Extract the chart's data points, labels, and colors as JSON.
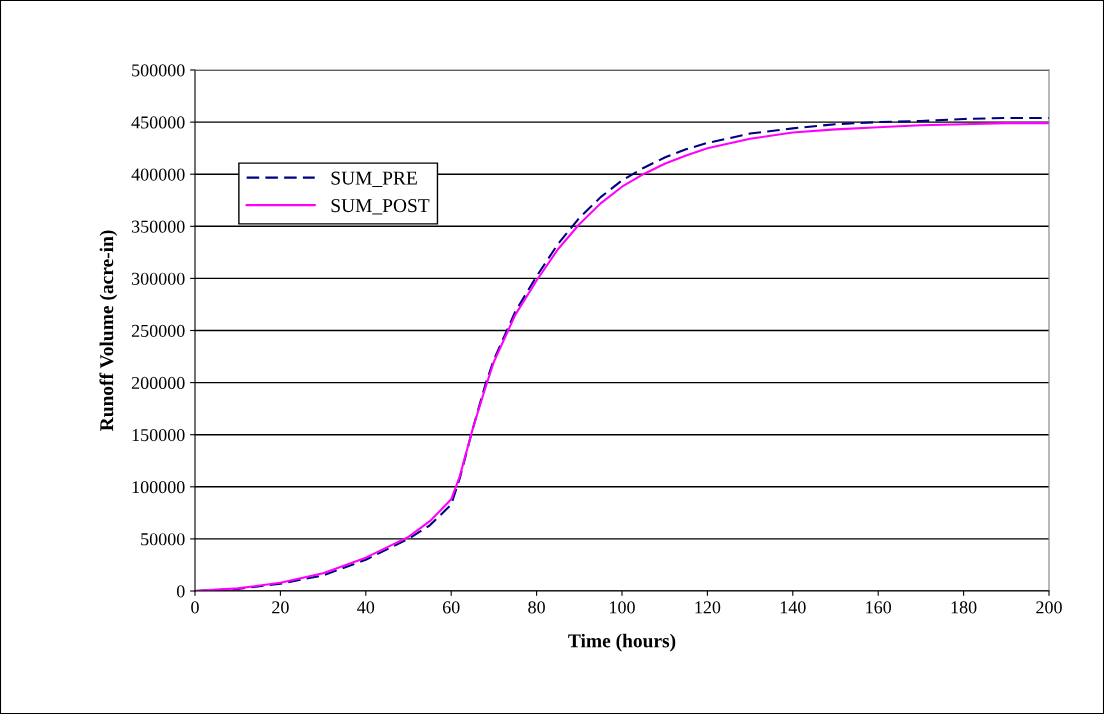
{
  "chart_data": {
    "type": "line",
    "xlabel": "Time (hours)",
    "ylabel": "Runoff Volume (acre-in)",
    "xlim": [
      0,
      200
    ],
    "xticks": [
      0,
      20,
      40,
      60,
      80,
      100,
      120,
      140,
      160,
      180,
      200
    ],
    "ylim": [
      0,
      500000
    ],
    "yticks": [
      0,
      50000,
      100000,
      150000,
      200000,
      250000,
      300000,
      350000,
      400000,
      450000,
      500000
    ],
    "grid": "y",
    "legend": "top left",
    "x": [
      0,
      10,
      20,
      30,
      40,
      50,
      55,
      60,
      62,
      65,
      68,
      70,
      75,
      80,
      85,
      90,
      95,
      100,
      105,
      110,
      115,
      120,
      130,
      140,
      150,
      160,
      170,
      180,
      190,
      200
    ],
    "series": [
      {
        "name": "SUM_PRE",
        "color": "#000080",
        "line_style": "dashed",
        "values": [
          0,
          2000,
          7000,
          15000,
          30000,
          50000,
          63000,
          83000,
          108000,
          155000,
          198000,
          222000,
          268000,
          302000,
          333000,
          358000,
          378000,
          394000,
          406000,
          416000,
          424000,
          430000,
          439000,
          444000,
          448000,
          450000,
          451000,
          453000,
          454000,
          454000
        ]
      },
      {
        "name": "SUM_POST",
        "color": "#ff00ff",
        "line_style": "solid",
        "values": [
          0,
          2500,
          8000,
          17000,
          32000,
          52000,
          67000,
          88000,
          110000,
          155000,
          195000,
          220000,
          265000,
          298000,
          328000,
          352000,
          372000,
          388000,
          400000,
          410000,
          418000,
          425000,
          434000,
          440000,
          443000,
          445000,
          447000,
          448000,
          449000,
          449000
        ]
      }
    ]
  }
}
